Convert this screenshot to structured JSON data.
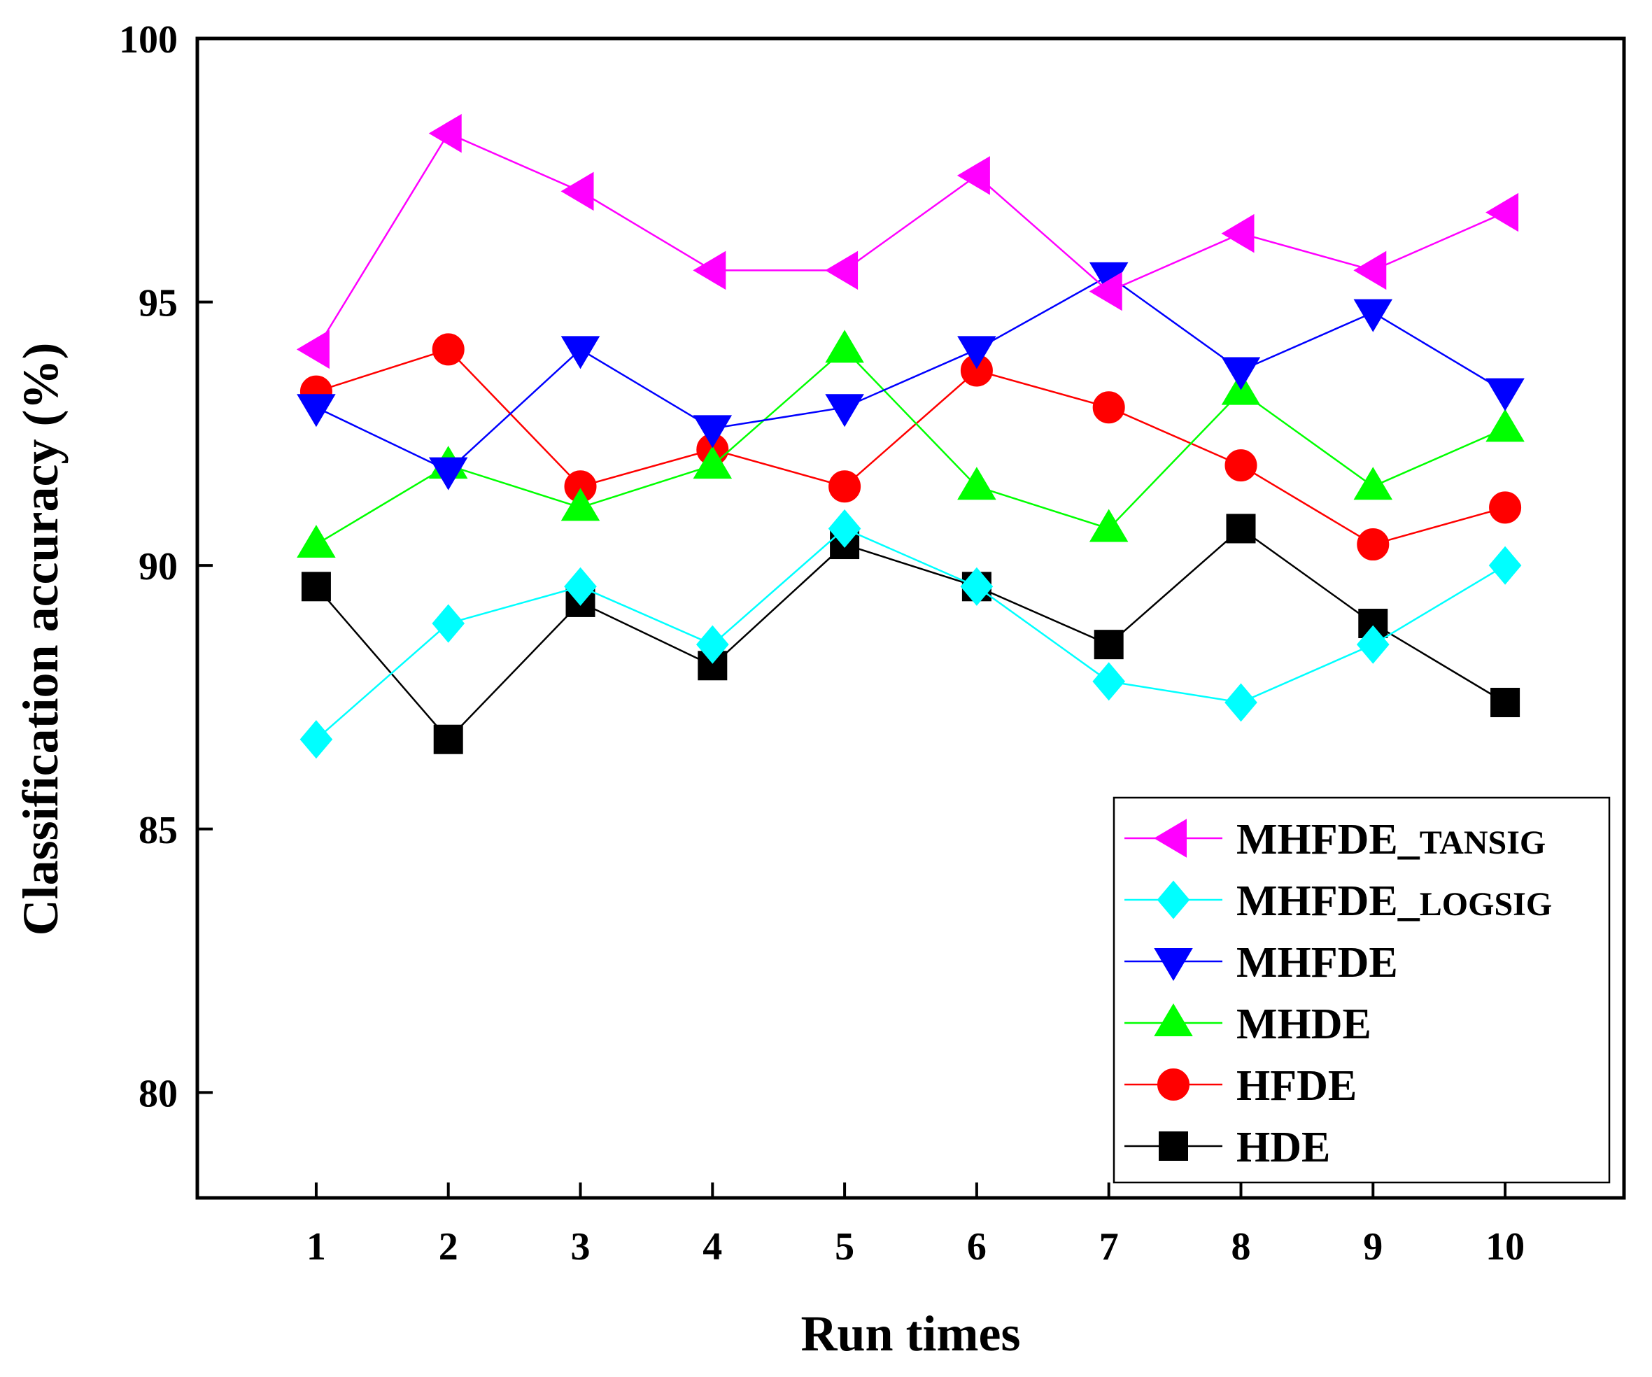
{
  "chart_data": {
    "type": "line",
    "title": "",
    "xlabel": "Run times",
    "ylabel": "Classification accuracy (%)",
    "x": [
      1,
      2,
      3,
      4,
      5,
      6,
      7,
      8,
      9,
      10
    ],
    "xlim": [
      0.1,
      10.9
    ],
    "ylim": [
      78,
      100
    ],
    "yticks": [
      80,
      85,
      90,
      95,
      100
    ],
    "grid": false,
    "legend_position": "bottom-right",
    "series": [
      {
        "name": "MHFDE_TANSIG",
        "label_main": "MHFDE_",
        "label_small": "TANSIG",
        "color": "#ff00ff",
        "marker": "triangle-left",
        "values": [
          94.1,
          98.2,
          97.1,
          95.6,
          95.6,
          97.4,
          95.2,
          96.3,
          95.6,
          96.7
        ]
      },
      {
        "name": "MHFDE_LOGSIG",
        "label_main": "MHFDE_",
        "label_small": "LOGSIG",
        "color": "#00ffff",
        "marker": "diamond",
        "values": [
          86.7,
          88.9,
          89.6,
          88.5,
          90.7,
          89.6,
          87.8,
          87.4,
          88.5,
          90.0
        ]
      },
      {
        "name": "MHFDE",
        "label_main": "MHFDE",
        "label_small": "",
        "color": "#0000ff",
        "marker": "triangle-down",
        "values": [
          93.0,
          91.8,
          94.1,
          92.6,
          93.0,
          94.1,
          95.5,
          93.7,
          94.8,
          93.3
        ]
      },
      {
        "name": "MHDE",
        "label_main": "MHDE",
        "label_small": "",
        "color": "#00ff00",
        "marker": "triangle-up",
        "values": [
          90.4,
          91.9,
          91.1,
          91.9,
          94.1,
          91.5,
          90.7,
          93.3,
          91.5,
          92.6
        ]
      },
      {
        "name": "HFDE",
        "label_main": "HFDE",
        "label_small": "",
        "color": "#ff0000",
        "marker": "circle",
        "values": [
          93.3,
          94.1,
          91.5,
          92.2,
          91.5,
          93.7,
          93.0,
          91.9,
          90.4,
          91.1
        ]
      },
      {
        "name": "HDE",
        "label_main": "HDE",
        "label_small": "",
        "color": "#000000",
        "marker": "square",
        "values": [
          89.6,
          86.7,
          89.3,
          88.1,
          90.4,
          89.6,
          88.5,
          90.7,
          88.9,
          87.4
        ]
      }
    ]
  }
}
